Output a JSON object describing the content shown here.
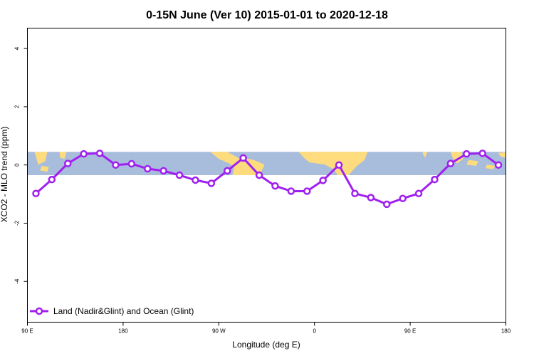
{
  "colors": {
    "series": "#a020f0",
    "marker_fill": "#ffffff",
    "ocean": "#a8bcdc",
    "land": "#fedc7e",
    "axis": "#000000"
  },
  "chart_data": {
    "type": "line",
    "title": "0-15N June (Ver 10)   2015-01-01 to 2020-12-18",
    "xlabel": "Longitude (deg E)",
    "ylabel": "XCO2 - MLO trend (ppm)",
    "x_ticks": [
      {
        "value": 90,
        "label": "90 E"
      },
      {
        "value": 180,
        "label": "180"
      },
      {
        "value": 270,
        "label": "90 W"
      },
      {
        "value": 360,
        "label": "0"
      },
      {
        "value": 450,
        "label": "90 E"
      },
      {
        "value": 540,
        "label": "180"
      }
    ],
    "y_ticks": [
      {
        "value": -4,
        "label": "-4"
      },
      {
        "value": -2,
        "label": "-2"
      },
      {
        "value": 0,
        "label": "0"
      },
      {
        "value": 2,
        "label": "2"
      },
      {
        "value": 4,
        "label": "4"
      }
    ],
    "xlim": [
      90,
      540
    ],
    "ylim": [
      -5.4,
      4.7
    ],
    "background_map": {
      "ymin": -0.35,
      "ymax": 0.45
    },
    "legend": {
      "position": "bottom-left"
    },
    "series": [
      {
        "name": "Land (Nadir&Glint) and Ocean (Glint)",
        "x": [
          98,
          113,
          128,
          143,
          158,
          173,
          188,
          203,
          218,
          233,
          248,
          263,
          278,
          293,
          308,
          323,
          338,
          353,
          368,
          383,
          398,
          413,
          428,
          443,
          458,
          473,
          488,
          503,
          518,
          533
        ],
        "y": [
          -0.98,
          -0.5,
          0.05,
          0.38,
          0.4,
          0.0,
          0.04,
          -0.13,
          -0.2,
          -0.35,
          -0.52,
          -0.63,
          -0.2,
          0.24,
          -0.35,
          -0.72,
          -0.9,
          -0.9,
          -0.53,
          0.0,
          -0.98,
          -1.12,
          -1.35,
          -1.15,
          -0.98,
          -0.5,
          0.05,
          0.38,
          0.4,
          0.0
        ]
      }
    ]
  }
}
